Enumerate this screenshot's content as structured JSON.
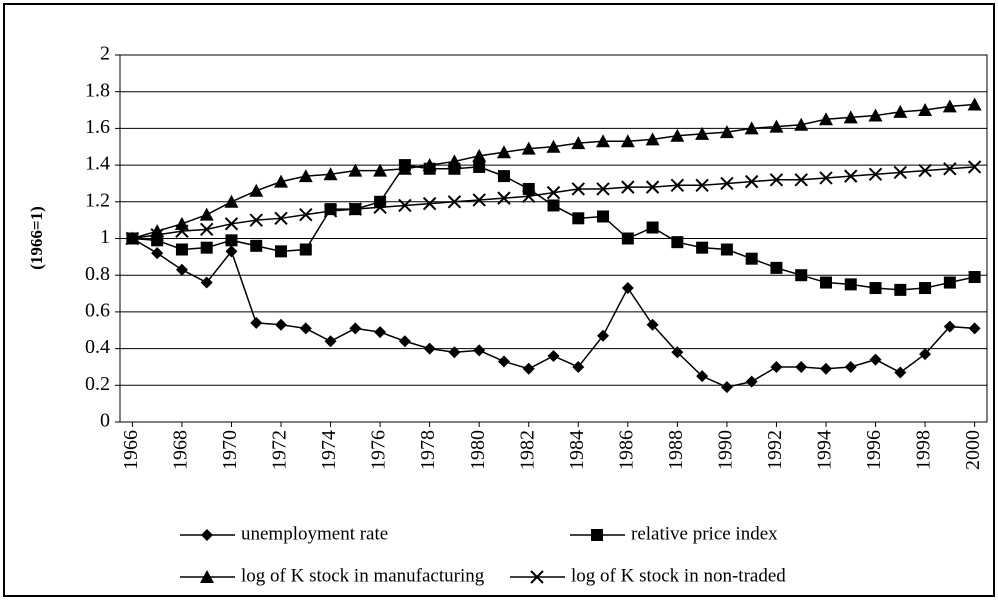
{
  "chart_data": {
    "type": "line",
    "y_label": "(1966=1)",
    "x": [
      1966,
      1967,
      1968,
      1969,
      1970,
      1971,
      1972,
      1973,
      1974,
      1975,
      1976,
      1977,
      1978,
      1979,
      1980,
      1981,
      1982,
      1983,
      1984,
      1985,
      1986,
      1987,
      1988,
      1989,
      1990,
      1991,
      1992,
      1993,
      1994,
      1995,
      1996,
      1997,
      1998,
      1999,
      2000
    ],
    "xlim": [
      1965.5,
      2000.5
    ],
    "xticks": [
      1966,
      1968,
      1970,
      1972,
      1974,
      1976,
      1978,
      1980,
      1982,
      1984,
      1986,
      1988,
      1990,
      1992,
      1994,
      1996,
      1998,
      2000
    ],
    "ylim": [
      0,
      2
    ],
    "yticks": [
      0,
      0.2,
      0.4,
      0.6,
      0.8,
      1,
      1.2,
      1.4,
      1.6,
      1.8,
      2
    ],
    "grid": true,
    "legend": "bottom",
    "series": [
      {
        "name": "unemployment rate",
        "color": "#000000",
        "marker": "diamond",
        "values": [
          1.0,
          0.92,
          0.83,
          0.76,
          0.93,
          0.54,
          0.53,
          0.51,
          0.44,
          0.51,
          0.49,
          0.44,
          0.4,
          0.38,
          0.39,
          0.33,
          0.29,
          0.36,
          0.3,
          0.47,
          0.73,
          0.53,
          0.38,
          0.25,
          0.19,
          0.22,
          0.3,
          0.3,
          0.29,
          0.3,
          0.34,
          0.27,
          0.37,
          0.52,
          0.51
        ]
      },
      {
        "name": "relative price index",
        "color": "#000000",
        "marker": "square",
        "values": [
          1.0,
          0.99,
          0.94,
          0.95,
          0.99,
          0.96,
          0.93,
          0.94,
          1.16,
          1.16,
          1.2,
          1.4,
          1.38,
          1.38,
          1.39,
          1.34,
          1.27,
          1.18,
          1.11,
          1.12,
          1.0,
          1.06,
          0.98,
          0.95,
          0.94,
          0.89,
          0.84,
          0.8,
          0.76,
          0.75,
          0.73,
          0.72,
          0.73,
          0.76,
          0.79
        ]
      },
      {
        "name": "log of K stock in manufacturing",
        "color": "#000000",
        "marker": "triangle",
        "values": [
          1.0,
          1.04,
          1.08,
          1.13,
          1.2,
          1.26,
          1.31,
          1.34,
          1.35,
          1.37,
          1.37,
          1.38,
          1.4,
          1.42,
          1.45,
          1.47,
          1.49,
          1.5,
          1.52,
          1.53,
          1.53,
          1.54,
          1.56,
          1.57,
          1.58,
          1.6,
          1.61,
          1.62,
          1.65,
          1.66,
          1.67,
          1.69,
          1.7,
          1.72,
          1.73
        ]
      },
      {
        "name": "log of K stock in non-traded",
        "color": "#000000",
        "marker": "x",
        "values": [
          1.0,
          1.02,
          1.04,
          1.05,
          1.08,
          1.1,
          1.11,
          1.13,
          1.15,
          1.16,
          1.17,
          1.18,
          1.19,
          1.2,
          1.21,
          1.22,
          1.23,
          1.25,
          1.27,
          1.27,
          1.28,
          1.28,
          1.29,
          1.29,
          1.3,
          1.31,
          1.32,
          1.32,
          1.33,
          1.34,
          1.35,
          1.36,
          1.37,
          1.38,
          1.39
        ]
      }
    ]
  }
}
